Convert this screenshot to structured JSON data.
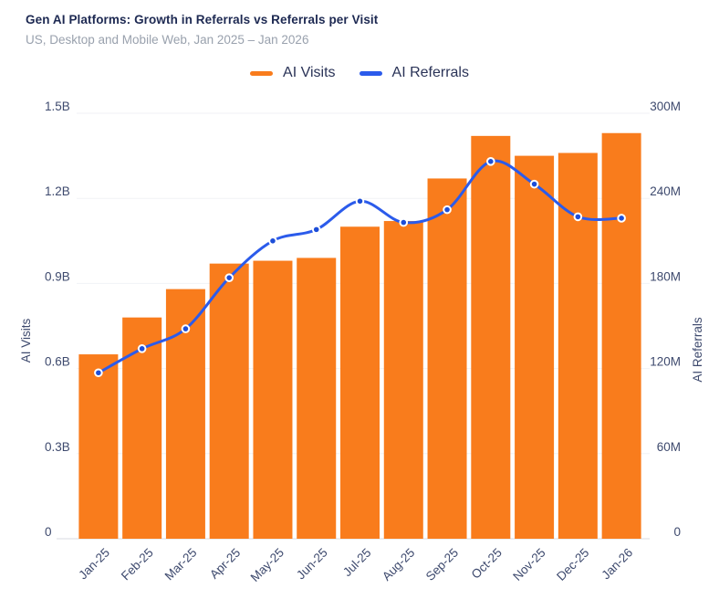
{
  "header": {
    "title": "Gen AI Platforms: Growth in Referrals vs Referrals per Visit",
    "subtitle": "US, Desktop and Mobile Web, Jan 2025 – Jan 2026"
  },
  "legend": {
    "items": [
      {
        "label": "AI Visits",
        "color": "#f97c1c"
      },
      {
        "label": "AI Referrals",
        "color": "#2b5beb"
      }
    ]
  },
  "colors": {
    "bar": "#f97c1c",
    "line": "#2b5beb",
    "point_fill": "#1d4ed8",
    "point_ring": "#ffffff",
    "gridline": "#f1f2f6",
    "baseline": "#e5e7ec",
    "tick_text": "#3e4a6e",
    "axis_title_text": "#3e4a6e"
  },
  "chart_data": {
    "type": "bar",
    "subtype": "combo-bar-line-dual-axis",
    "title": "Gen AI Platforms: Growth in Referrals vs Referrals per Visit",
    "subtitle": "US, Desktop and Mobile Web, Jan 2025 – Jan 2026",
    "categories": [
      "Jan-25",
      "Feb-25",
      "Mar-25",
      "Apr-25",
      "May-25",
      "Jun-25",
      "Jul-25",
      "Aug-25",
      "Sep-25",
      "Oct-25",
      "Nov-25",
      "Dec-25",
      "Jan-26"
    ],
    "series": [
      {
        "name": "AI Visits",
        "type": "bar",
        "axis": "left",
        "unit": "billions of visits",
        "color": "#f97c1c",
        "values": [
          0.65,
          0.78,
          0.88,
          0.97,
          0.98,
          0.99,
          1.1,
          1.12,
          1.27,
          1.42,
          1.35,
          1.36,
          1.43
        ]
      },
      {
        "name": "AI Referrals",
        "type": "line",
        "axis": "right",
        "unit": "millions of referrals",
        "color": "#2b5beb",
        "values": [
          117,
          134,
          148,
          184,
          210,
          218,
          238,
          223,
          232,
          266,
          250,
          227,
          226
        ]
      }
    ],
    "left_axis": {
      "label": "AI Visits",
      "range": [
        0,
        1.5
      ],
      "tick_labels": [
        "0",
        "0.3B",
        "0.6B",
        "0.9B",
        "1.2B",
        "1.5B"
      ]
    },
    "right_axis": {
      "label": "AI Referrals",
      "range": [
        0,
        300
      ],
      "tick_labels": [
        "0",
        "60M",
        "120M",
        "180M",
        "240M",
        "300M"
      ]
    },
    "x_axis": {
      "tick_rotation": -45
    },
    "grid": true,
    "legend_position": "top-center"
  }
}
